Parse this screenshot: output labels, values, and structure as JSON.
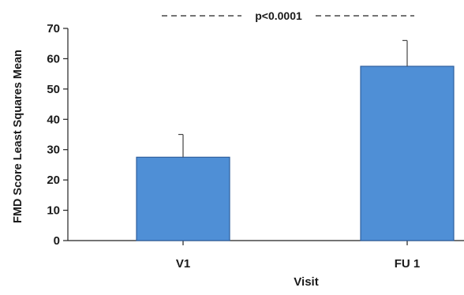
{
  "chart_data": {
    "type": "bar",
    "categories": [
      "V1",
      "FU 1"
    ],
    "values": [
      27.5,
      57.5
    ],
    "error_upper": [
      35,
      66
    ],
    "title": "",
    "xlabel": "Visit",
    "ylabel": "FMD Score Least Squares Mean",
    "ylim": [
      0,
      70
    ],
    "yticks": [
      0,
      10,
      20,
      30,
      40,
      50,
      60,
      70
    ],
    "annotation": "p<0.0001",
    "bar_color": "#4f8fd6",
    "bar_edge_color": "#2e5f9e",
    "grid": false,
    "legend": "none"
  }
}
